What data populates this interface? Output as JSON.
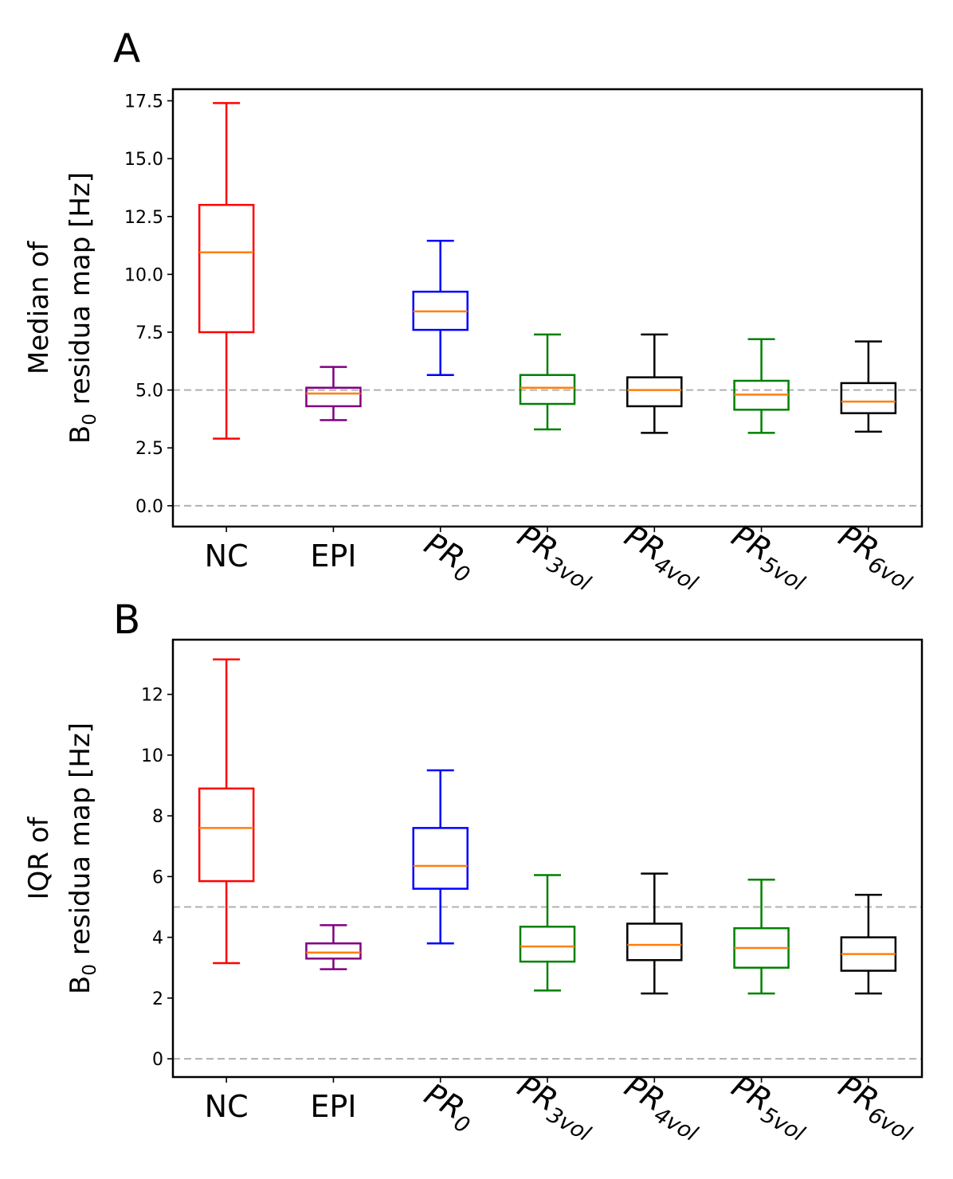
{
  "chart_data": [
    {
      "panel_label": "A",
      "type": "box",
      "ylabel_line1": "Median of",
      "ylabel_line2_main": "B",
      "ylabel_line2_sub": "0",
      "ylabel_line2_rest": " residua map [Hz]",
      "ylim": [
        -0.9,
        18.0
      ],
      "yticks": [
        0.0,
        2.5,
        5.0,
        7.5,
        10.0,
        12.5,
        15.0,
        17.5
      ],
      "ytick_labels": [
        "0.0",
        "2.5",
        "5.0",
        "7.5",
        "10.0",
        "12.5",
        "15.0",
        "17.5"
      ],
      "reference_lines": [
        0,
        5
      ],
      "categories": [
        {
          "main": "NC",
          "sub": "",
          "rotated": false
        },
        {
          "main": "EPI",
          "sub": "",
          "rotated": false
        },
        {
          "main": "PR",
          "sub": "0",
          "rotated": true
        },
        {
          "main": "PR",
          "sub": "3vol",
          "rotated": true
        },
        {
          "main": "PR",
          "sub": "4vol",
          "rotated": true
        },
        {
          "main": "PR",
          "sub": "5vol",
          "rotated": true
        },
        {
          "main": "PR",
          "sub": "6vol",
          "rotated": true
        }
      ],
      "boxes": [
        {
          "whislo": 2.9,
          "q1": 7.5,
          "med": 10.95,
          "q3": 13.0,
          "whishi": 17.4,
          "color": "#ff0000"
        },
        {
          "whislo": 3.7,
          "q1": 4.3,
          "med": 4.85,
          "q3": 5.1,
          "whishi": 6.0,
          "color": "#800080"
        },
        {
          "whislo": 5.65,
          "q1": 7.6,
          "med": 8.4,
          "q3": 9.25,
          "whishi": 11.45,
          "color": "#0000ff"
        },
        {
          "whislo": 3.3,
          "q1": 4.4,
          "med": 5.1,
          "q3": 5.65,
          "whishi": 7.4,
          "color": "#008000"
        },
        {
          "whislo": 3.15,
          "q1": 4.3,
          "med": 5.0,
          "q3": 5.55,
          "whishi": 7.4,
          "color": "#000000"
        },
        {
          "whislo": 3.15,
          "q1": 4.15,
          "med": 4.8,
          "q3": 5.4,
          "whishi": 7.2,
          "color": "#008000"
        },
        {
          "whislo": 3.2,
          "q1": 4.0,
          "med": 4.5,
          "q3": 5.3,
          "whishi": 7.1,
          "color": "#000000"
        }
      ],
      "median_color": "#ff7f0e"
    },
    {
      "panel_label": "B",
      "type": "box",
      "ylabel_line1": "IQR of",
      "ylabel_line2_main": "B",
      "ylabel_line2_sub": "0",
      "ylabel_line2_rest": " residua map [Hz]",
      "ylim": [
        -0.6,
        13.8
      ],
      "yticks": [
        0,
        2,
        4,
        6,
        8,
        10,
        12
      ],
      "ytick_labels": [
        "0",
        "2",
        "4",
        "6",
        "8",
        "10",
        "12"
      ],
      "reference_lines": [
        0,
        5
      ],
      "categories": [
        {
          "main": "NC",
          "sub": "",
          "rotated": false
        },
        {
          "main": "EPI",
          "sub": "",
          "rotated": false
        },
        {
          "main": "PR",
          "sub": "0",
          "rotated": true
        },
        {
          "main": "PR",
          "sub": "3vol",
          "rotated": true
        },
        {
          "main": "PR",
          "sub": "4vol",
          "rotated": true
        },
        {
          "main": "PR",
          "sub": "5vol",
          "rotated": true
        },
        {
          "main": "PR",
          "sub": "6vol",
          "rotated": true
        }
      ],
      "boxes": [
        {
          "whislo": 3.15,
          "q1": 5.85,
          "med": 7.6,
          "q3": 8.9,
          "whishi": 13.15,
          "color": "#ff0000"
        },
        {
          "whislo": 2.95,
          "q1": 3.3,
          "med": 3.5,
          "q3": 3.8,
          "whishi": 4.4,
          "color": "#800080"
        },
        {
          "whislo": 3.8,
          "q1": 5.6,
          "med": 6.35,
          "q3": 7.6,
          "whishi": 9.5,
          "color": "#0000ff"
        },
        {
          "whislo": 2.25,
          "q1": 3.2,
          "med": 3.7,
          "q3": 4.35,
          "whishi": 6.05,
          "color": "#008000"
        },
        {
          "whislo": 2.15,
          "q1": 3.25,
          "med": 3.75,
          "q3": 4.45,
          "whishi": 6.1,
          "color": "#000000"
        },
        {
          "whislo": 2.15,
          "q1": 3.0,
          "med": 3.65,
          "q3": 4.3,
          "whishi": 5.9,
          "color": "#008000"
        },
        {
          "whislo": 2.15,
          "q1": 2.9,
          "med": 3.45,
          "q3": 4.0,
          "whishi": 5.4,
          "color": "#000000"
        }
      ],
      "median_color": "#ff7f0e"
    }
  ]
}
